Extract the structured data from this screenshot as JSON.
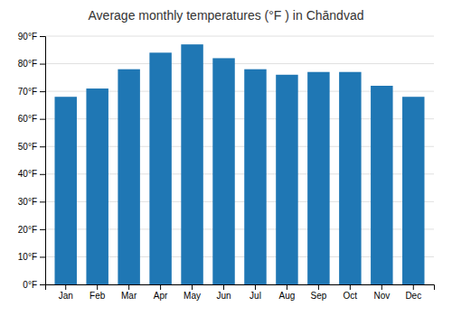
{
  "chart_data": {
    "type": "bar",
    "title": "Average monthly temperatures (°F ) in Chāndvad",
    "categories": [
      "Jan",
      "Feb",
      "Mar",
      "Apr",
      "May",
      "Jun",
      "Jul",
      "Aug",
      "Sep",
      "Oct",
      "Nov",
      "Dec"
    ],
    "values": [
      68,
      71,
      78,
      84,
      87,
      82,
      78,
      76,
      77,
      77,
      72,
      68
    ],
    "ylim": [
      0,
      90
    ],
    "yticks": [
      {
        "value": 0,
        "label": "0°F"
      },
      {
        "value": 10,
        "label": "10°F"
      },
      {
        "value": 20,
        "label": "20°F"
      },
      {
        "value": 30,
        "label": "30°F"
      },
      {
        "value": 40,
        "label": "40°F"
      },
      {
        "value": 50,
        "label": "50°F"
      },
      {
        "value": 60,
        "label": "60°F"
      },
      {
        "value": 70,
        "label": "70°F"
      },
      {
        "value": 80,
        "label": "80°F"
      },
      {
        "value": 90,
        "label": "90°F"
      }
    ],
    "grid": true
  }
}
